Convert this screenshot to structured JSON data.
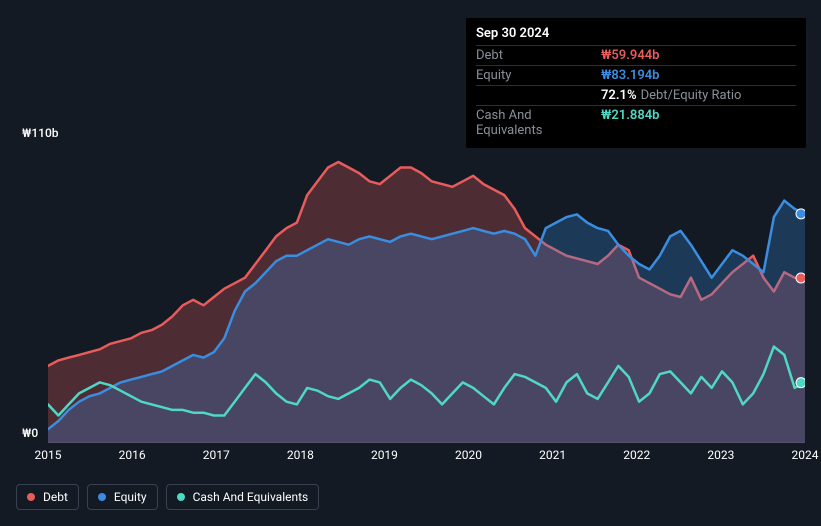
{
  "tooltip": {
    "date": "Sep 30 2024",
    "rows": [
      {
        "label": "Debt",
        "value": "₩59.944b",
        "extra": "",
        "color": "#e85c5c"
      },
      {
        "label": "Equity",
        "value": "₩83.194b",
        "extra": "",
        "color": "#3a8de0"
      },
      {
        "label": "",
        "value": "72.1%",
        "extra": "Debt/Equity Ratio",
        "color": "#ffffff"
      },
      {
        "label": "Cash And Equivalents",
        "value": "₩21.884b",
        "extra": "",
        "color": "#4fd8c4"
      }
    ]
  },
  "y_axis": {
    "max_label": "₩110b",
    "min_label": "₩0",
    "max": 110,
    "min": 0
  },
  "x_axis": {
    "labels": [
      "2015",
      "2016",
      "2017",
      "2018",
      "2019",
      "2020",
      "2021",
      "2022",
      "2023",
      "2024"
    ]
  },
  "chart": {
    "background": "#131a24",
    "plot_bg": "#131a24",
    "grid_color": "#2a2f38"
  },
  "series": {
    "debt": {
      "label": "Debt",
      "color": "#e85c5c",
      "fill_opacity": 0.28,
      "stroke_width": 2.5,
      "values": [
        28,
        30,
        31,
        32,
        33,
        34,
        36,
        37,
        38,
        40,
        41,
        43,
        46,
        50,
        52,
        50,
        53,
        56,
        58,
        60,
        65,
        70,
        75,
        78,
        80,
        90,
        95,
        100,
        102,
        100,
        98,
        95,
        94,
        97,
        100,
        100,
        98,
        95,
        94,
        93,
        95,
        97,
        94,
        92,
        90,
        85,
        78,
        75,
        72,
        70,
        68,
        67,
        66,
        65,
        68,
        72,
        70,
        60,
        58,
        56,
        54,
        53,
        60,
        52,
        54,
        58,
        62,
        65,
        68,
        60,
        55,
        62,
        60,
        59.9
      ]
    },
    "equity": {
      "label": "Equity",
      "color": "#3a8de0",
      "fill_opacity": 0.28,
      "stroke_width": 2.5,
      "values": [
        5,
        8,
        12,
        15,
        17,
        18,
        20,
        22,
        23,
        24,
        25,
        26,
        28,
        30,
        32,
        31,
        33,
        38,
        48,
        55,
        58,
        62,
        66,
        68,
        68,
        70,
        72,
        74,
        73,
        72,
        74,
        75,
        74,
        73,
        75,
        76,
        75,
        74,
        75,
        76,
        77,
        78,
        77,
        76,
        77,
        76,
        74,
        68,
        78,
        80,
        82,
        83,
        80,
        78,
        77,
        72,
        68,
        65,
        63,
        68,
        75,
        77,
        72,
        66,
        60,
        65,
        70,
        68,
        65,
        62,
        82,
        88,
        85,
        83.2
      ]
    },
    "cash": {
      "label": "Cash And Equivalents",
      "color": "#4fd8c4",
      "fill_opacity": 0.0,
      "stroke_width": 2.5,
      "values": [
        14,
        10,
        14,
        18,
        20,
        22,
        21,
        19,
        17,
        15,
        14,
        13,
        12,
        12,
        11,
        11,
        10,
        10,
        15,
        20,
        25,
        22,
        18,
        15,
        14,
        20,
        19,
        17,
        16,
        18,
        20,
        23,
        22,
        16,
        20,
        23,
        21,
        18,
        14,
        18,
        22,
        20,
        17,
        14,
        20,
        25,
        24,
        22,
        20,
        15,
        22,
        25,
        18,
        16,
        22,
        28,
        24,
        15,
        18,
        25,
        26,
        22,
        18,
        24,
        20,
        26,
        22,
        14,
        18,
        25,
        35,
        32,
        20,
        21.9
      ]
    }
  },
  "legend": [
    {
      "label": "Debt",
      "color": "#e85c5c"
    },
    {
      "label": "Equity",
      "color": "#3a8de0"
    },
    {
      "label": "Cash And Equivalents",
      "color": "#4fd8c4"
    }
  ]
}
